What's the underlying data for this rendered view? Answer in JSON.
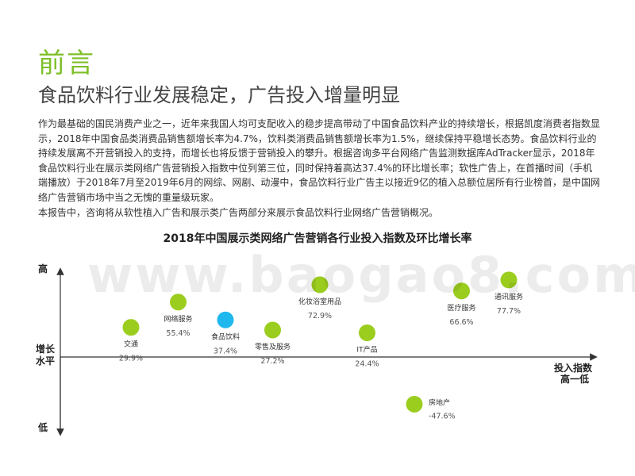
{
  "heading": "前言",
  "subtitle": "食品饮料行业发展稳定，广告投入增量明显",
  "paragraphs": [
    "作为最基础的国民消费产业之一，近年来我国人均可支配收入的稳步提高带动了中国食品饮料产业的持续增长，根据凯度消费者指数显示，2018年中国食品类消费品销售额增长率为4.7%，饮料类消费品销售额增长率为1.5%，继续保持平稳增长态势。食品饮料行业的持续发展离不开营销投入的支持，而增长也将反馈于营销投入的攀升。根据咨询多平台网络广告监测数据库AdTracker显示，2018年食品饮料行业在展示类网络广告营销投入指数中位列第三位，同时保持着高达37.4%的环比增长率；软性广告上，在首播时间（手机端播放）于2018年7月至2019年6月的网综、网剧、动漫中，食品饮料行业广告主以接近9亿的植入总额位居所有行业榜首，是中国网络广告营销市场中当之无愧的重量级玩家。",
    "本报告中，咨询将从软性植入广告和展示类广告两部分来展示食品饮料行业网络广告营销概况。"
  ],
  "watermark": "www.baogao8.com",
  "chart_data": {
    "type": "scatter",
    "title": "2018年中国展示类网络广告营销各行业投入指数及环比增长率",
    "x_axis": {
      "label_line1": "投入指数",
      "label_line2": "高一低",
      "direction": "high-to-low"
    },
    "y_axis": {
      "label_high": "高",
      "label_mid_line1": "增长",
      "label_mid_line2": "水平",
      "label_low": "低"
    },
    "points": [
      {
        "name": "交通",
        "value_label": "29.9%",
        "growth": 29.9,
        "rank": 1,
        "color": "#9bcd1e"
      },
      {
        "name": "网络服务",
        "value_label": "55.4%",
        "growth": 55.4,
        "rank": 2,
        "color": "#9bcd1e"
      },
      {
        "name": "食品饮料",
        "value_label": "37.4%",
        "growth": 37.4,
        "rank": 3,
        "color": "#1fb8ee"
      },
      {
        "name": "零售及服务",
        "value_label": "27.2%",
        "growth": 27.2,
        "rank": 4,
        "color": "#9bcd1e"
      },
      {
        "name": "化妆浴室用品",
        "value_label": "72.9%",
        "growth": 72.9,
        "rank": 5,
        "color": "#9bcd1e"
      },
      {
        "name": "IT产品",
        "value_label": "24.4%",
        "growth": 24.4,
        "rank": 6,
        "color": "#9bcd1e"
      },
      {
        "name": "房地产",
        "value_label": "-47.6%",
        "growth": -47.6,
        "rank": 7,
        "color": "#9bcd1e"
      },
      {
        "name": "医疗服务",
        "value_label": "66.6%",
        "growth": 66.6,
        "rank": 8,
        "color": "#9bcd1e"
      },
      {
        "name": "通讯服务",
        "value_label": "77.7%",
        "growth": 77.7,
        "rank": 9,
        "color": "#9bcd1e"
      }
    ]
  }
}
